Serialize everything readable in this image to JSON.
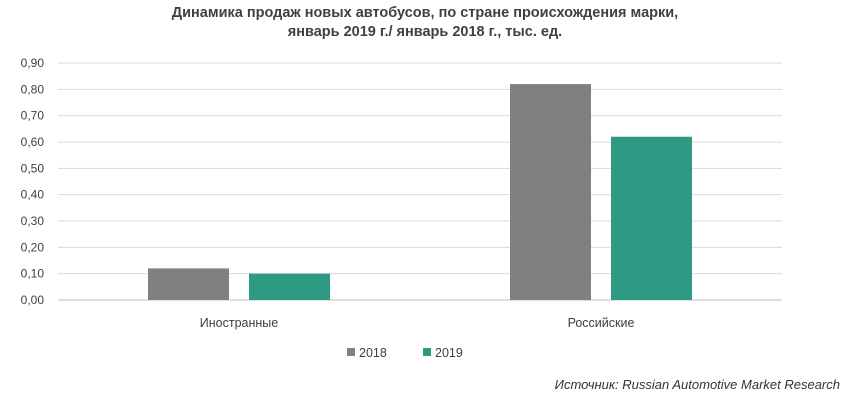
{
  "chart_data": {
    "type": "bar",
    "title_line1": "Динамика продаж новых автобусов, по стране происхождения марки,",
    "title_line2": "январь 2019 г./ январь 2018 г., тыс. ед.",
    "categories": [
      "Иностранные",
      "Российские"
    ],
    "series": [
      {
        "name": "2018",
        "values": [
          0.12,
          0.82
        ],
        "color": "#808080"
      },
      {
        "name": "2019",
        "values": [
          0.1,
          0.62
        ],
        "color": "#2e9a84"
      }
    ],
    "ylim": [
      0,
      0.9
    ],
    "yticks": [
      "0,00",
      "0,10",
      "0,20",
      "0,30",
      "0,40",
      "0,50",
      "0,60",
      "0,70",
      "0,80",
      "0,90"
    ],
    "grid": true,
    "legend_position": "bottom"
  },
  "source": "Источник: Russian Automotive Market Research"
}
